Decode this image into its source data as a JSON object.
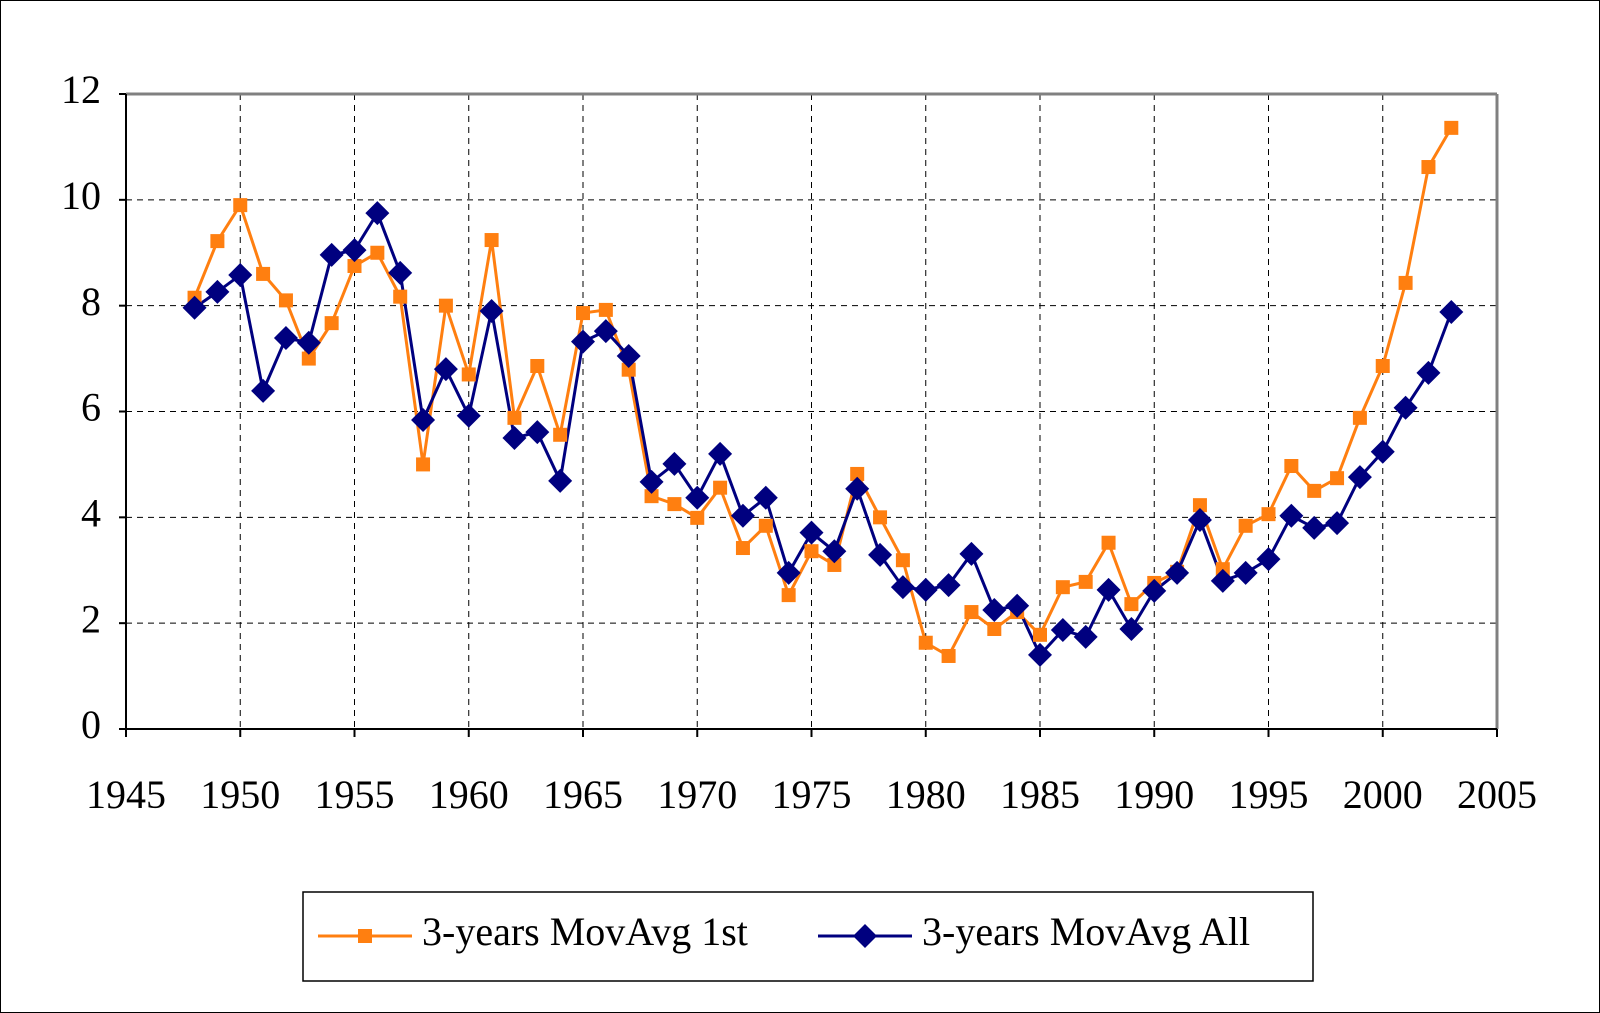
{
  "chart_data": {
    "type": "line",
    "x": [
      1948,
      1949,
      1950,
      1951,
      1952,
      1953,
      1954,
      1955,
      1956,
      1957,
      1958,
      1959,
      1960,
      1961,
      1962,
      1963,
      1964,
      1965,
      1966,
      1967,
      1968,
      1969,
      1970,
      1971,
      1972,
      1973,
      1974,
      1975,
      1976,
      1977,
      1978,
      1979,
      1980,
      1981,
      1982,
      1983,
      1984,
      1985,
      1986,
      1987,
      1988,
      1989,
      1990,
      1991,
      1992,
      1993,
      1994,
      1995,
      1996,
      1997,
      1998,
      1999,
      2000,
      2001,
      2002,
      2003
    ],
    "series": [
      {
        "name": "3-years MovAvg 1st",
        "color": "#ff7f10",
        "marker": "square",
        "values": [
          8.15,
          9.22,
          9.9,
          8.6,
          8.1,
          7.0,
          7.67,
          8.75,
          9.0,
          8.17,
          5.0,
          8.0,
          6.7,
          9.24,
          5.88,
          6.86,
          5.56,
          7.86,
          7.92,
          6.79,
          4.4,
          4.25,
          3.99,
          4.56,
          3.42,
          3.84,
          2.53,
          3.36,
          3.1,
          4.82,
          4.0,
          3.19,
          1.63,
          1.38,
          2.21,
          1.89,
          2.21,
          1.78,
          2.68,
          2.78,
          3.52,
          2.36,
          2.76,
          2.97,
          4.23,
          3.02,
          3.84,
          4.06,
          4.97,
          4.5,
          4.74,
          5.88,
          6.86,
          8.43,
          10.62,
          11.36
        ]
      },
      {
        "name": "3-years MovAvg All",
        "color": "#00007f",
        "marker": "diamond",
        "values": [
          7.96,
          8.26,
          8.58,
          6.39,
          7.39,
          7.3,
          8.96,
          9.05,
          9.75,
          8.62,
          5.84,
          6.8,
          5.92,
          7.9,
          5.5,
          5.61,
          4.69,
          7.32,
          7.52,
          7.05,
          4.67,
          5.01,
          4.37,
          5.2,
          4.03,
          4.37,
          2.95,
          3.71,
          3.36,
          4.54,
          3.29,
          2.68,
          2.63,
          2.72,
          3.31,
          2.25,
          2.33,
          1.4,
          1.87,
          1.74,
          2.63,
          1.89,
          2.61,
          2.95,
          3.95,
          2.8,
          2.95,
          3.21,
          4.03,
          3.8,
          3.89,
          4.76,
          5.24,
          6.07,
          6.73,
          7.88
        ]
      }
    ],
    "xlim": [
      1945,
      2005
    ],
    "xticks": [
      1945,
      1950,
      1955,
      1960,
      1965,
      1970,
      1975,
      1980,
      1985,
      1990,
      1995,
      2000,
      2005
    ],
    "ylim": [
      0,
      12
    ],
    "yticks": [
      0,
      2,
      4,
      6,
      8,
      10,
      12
    ],
    "grid": true,
    "legend": "bottom"
  }
}
